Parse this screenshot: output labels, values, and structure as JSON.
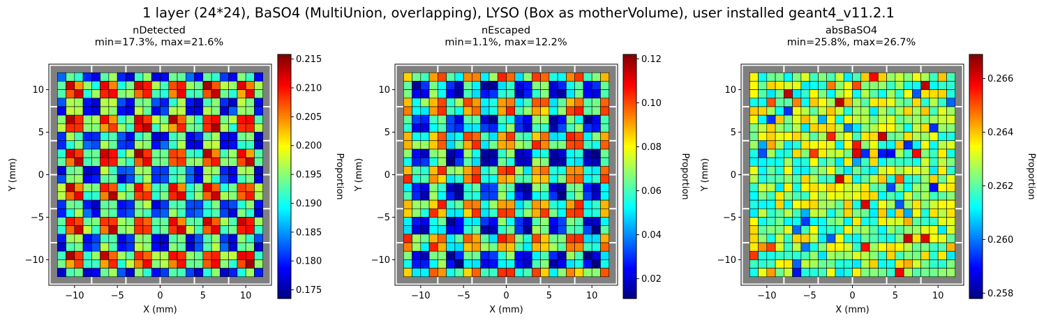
{
  "figure": {
    "title": "1 layer (24*24), BaSO4 (MultiUnion, overlapping), LYSO (Box as motherVolume), user installed geant4_v11.2.1"
  },
  "colors": {
    "background_frame": "#808080",
    "gap_lines": "#ffffff",
    "cell_edge": "#000000",
    "colormap": "jet"
  },
  "chart_data": [
    {
      "type": "heatmap",
      "title": "nDetected",
      "subtitle": "min=17.3%, max=21.6%",
      "xlabel": "X (mm)",
      "ylabel": "Y (mm)",
      "xlim": [
        -13,
        13
      ],
      "ylim": [
        -13,
        13
      ],
      "x_ticks": [
        "−10",
        "−5",
        "0",
        "5",
        "10"
      ],
      "y_ticks": [
        "−10",
        "−5",
        "0",
        "5",
        "10"
      ],
      "tick_values": [
        -10,
        -5,
        0,
        5,
        10
      ],
      "grid_size": 24,
      "cell_extent": [
        -12,
        12
      ],
      "colorbar": {
        "label": "Proportion",
        "range": [
          0.1735,
          0.2158
        ],
        "ticks": [
          0.175,
          0.18,
          0.185,
          0.19,
          0.195,
          0.2,
          0.205,
          0.21,
          0.215
        ],
        "tick_labels": [
          "0.175",
          "0.180",
          "0.185",
          "0.190",
          "0.195",
          "0.200",
          "0.205",
          "0.210",
          "0.215"
        ]
      },
      "min_value": 0.173,
      "max_value": 0.216,
      "pattern": "periodic in 4×4 tiles; edges low, centres high"
    },
    {
      "type": "heatmap",
      "title": "nEscaped",
      "subtitle": "min=1.1%, max=12.2%",
      "xlabel": "X (mm)",
      "ylabel": "Y (mm)",
      "xlim": [
        -13,
        13
      ],
      "ylim": [
        -13,
        13
      ],
      "x_ticks": [
        "−10",
        "−5",
        "0",
        "5",
        "10"
      ],
      "y_ticks": [
        "−10",
        "−5",
        "0",
        "5",
        "10"
      ],
      "tick_values": [
        -10,
        -5,
        0,
        5,
        10
      ],
      "grid_size": 24,
      "cell_extent": [
        -12,
        12
      ],
      "colorbar": {
        "label": "Proportion",
        "range": [
          0.011,
          0.122
        ],
        "ticks": [
          0.02,
          0.04,
          0.06,
          0.08,
          0.1,
          0.12
        ],
        "tick_labels": [
          "0.02",
          "0.04",
          "0.06",
          "0.08",
          "0.10",
          "0.12"
        ]
      },
      "min_value": 0.011,
      "max_value": 0.122,
      "pattern": "periodic in 4×4 tiles; tile centres low, tile corners high"
    },
    {
      "type": "heatmap",
      "title": "absBaSO4",
      "subtitle": "min=25.8%, max=26.7%",
      "xlabel": "X (mm)",
      "ylabel": "Y (mm)",
      "xlim": [
        -13,
        13
      ],
      "ylim": [
        -13,
        13
      ],
      "x_ticks": [
        "−10",
        "−5",
        "0",
        "5",
        "10"
      ],
      "y_ticks": [
        "−10",
        "−5",
        "0",
        "5",
        "10"
      ],
      "tick_values": [
        -10,
        -5,
        0,
        5,
        10
      ],
      "grid_size": 24,
      "cell_extent": [
        -12,
        12
      ],
      "colorbar": {
        "label": "Proportion",
        "range": [
          0.2578,
          0.2669
        ],
        "ticks": [
          0.258,
          0.26,
          0.262,
          0.264,
          0.266
        ],
        "tick_labels": [
          "0.258",
          "0.260",
          "0.262",
          "0.264",
          "0.266"
        ]
      },
      "min_value": 0.258,
      "max_value": 0.267,
      "pattern": "noisy, mostly 0.261–0.264"
    }
  ]
}
